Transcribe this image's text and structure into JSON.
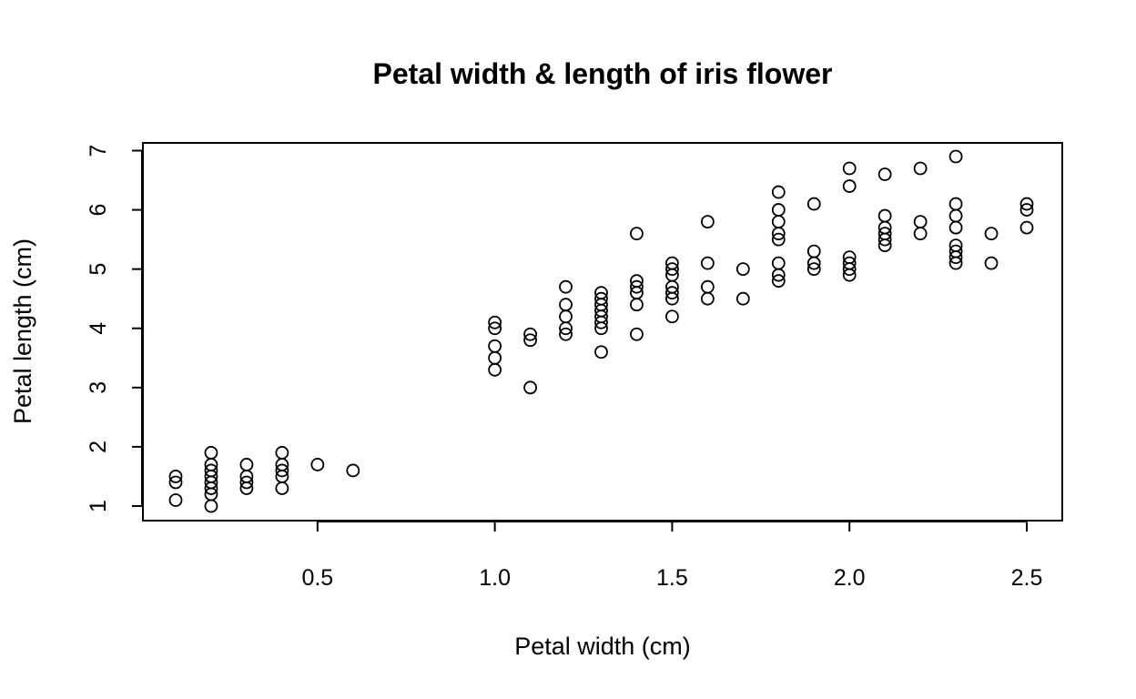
{
  "chart_data": {
    "type": "scatter",
    "title": "Petal width & length of iris flower",
    "xlabel": "Petal width (cm)",
    "ylabel": "Petal length (cm)",
    "xlim": [
      0.1,
      2.5
    ],
    "ylim": [
      1,
      6.9
    ],
    "x_ticks": [
      0.5,
      1.0,
      1.5,
      2.0,
      2.5
    ],
    "x_tick_labels": [
      "0.5",
      "1.0",
      "1.5",
      "2.0",
      "2.5"
    ],
    "y_ticks": [
      1,
      2,
      3,
      4,
      5,
      6,
      7
    ],
    "y_tick_labels": [
      "1",
      "2",
      "3",
      "4",
      "5",
      "6",
      "7"
    ],
    "grid": false,
    "marker": "open-circle",
    "points": [
      [
        0.1,
        1.1
      ],
      [
        0.1,
        1.4
      ],
      [
        0.1,
        1.5
      ],
      [
        0.2,
        1.0
      ],
      [
        0.2,
        1.2
      ],
      [
        0.2,
        1.3
      ],
      [
        0.2,
        1.4
      ],
      [
        0.2,
        1.5
      ],
      [
        0.2,
        1.6
      ],
      [
        0.2,
        1.7
      ],
      [
        0.2,
        1.9
      ],
      [
        0.3,
        1.3
      ],
      [
        0.3,
        1.4
      ],
      [
        0.3,
        1.5
      ],
      [
        0.3,
        1.7
      ],
      [
        0.4,
        1.3
      ],
      [
        0.4,
        1.5
      ],
      [
        0.4,
        1.6
      ],
      [
        0.4,
        1.7
      ],
      [
        0.4,
        1.9
      ],
      [
        0.5,
        1.7
      ],
      [
        0.6,
        1.6
      ],
      [
        1.0,
        3.3
      ],
      [
        1.0,
        3.5
      ],
      [
        1.0,
        3.7
      ],
      [
        1.0,
        4.0
      ],
      [
        1.0,
        4.1
      ],
      [
        1.1,
        3.0
      ],
      [
        1.1,
        3.8
      ],
      [
        1.1,
        3.9
      ],
      [
        1.2,
        3.9
      ],
      [
        1.2,
        4.0
      ],
      [
        1.2,
        4.2
      ],
      [
        1.2,
        4.4
      ],
      [
        1.2,
        4.7
      ],
      [
        1.3,
        3.6
      ],
      [
        1.3,
        4.0
      ],
      [
        1.3,
        4.1
      ],
      [
        1.3,
        4.2
      ],
      [
        1.3,
        4.3
      ],
      [
        1.3,
        4.4
      ],
      [
        1.3,
        4.5
      ],
      [
        1.3,
        4.6
      ],
      [
        1.4,
        3.9
      ],
      [
        1.4,
        4.4
      ],
      [
        1.4,
        4.6
      ],
      [
        1.4,
        4.7
      ],
      [
        1.4,
        4.8
      ],
      [
        1.4,
        5.6
      ],
      [
        1.5,
        4.2
      ],
      [
        1.5,
        4.5
      ],
      [
        1.5,
        4.6
      ],
      [
        1.5,
        4.7
      ],
      [
        1.5,
        4.9
      ],
      [
        1.5,
        5.0
      ],
      [
        1.5,
        5.1
      ],
      [
        1.6,
        4.5
      ],
      [
        1.6,
        4.7
      ],
      [
        1.6,
        5.1
      ],
      [
        1.6,
        5.8
      ],
      [
        1.7,
        4.5
      ],
      [
        1.7,
        5.0
      ],
      [
        1.8,
        4.8
      ],
      [
        1.8,
        4.9
      ],
      [
        1.8,
        5.1
      ],
      [
        1.8,
        5.5
      ],
      [
        1.8,
        5.6
      ],
      [
        1.8,
        5.8
      ],
      [
        1.8,
        6.0
      ],
      [
        1.8,
        6.3
      ],
      [
        1.9,
        5.0
      ],
      [
        1.9,
        5.1
      ],
      [
        1.9,
        5.3
      ],
      [
        1.9,
        6.1
      ],
      [
        2.0,
        4.9
      ],
      [
        2.0,
        5.0
      ],
      [
        2.0,
        5.1
      ],
      [
        2.0,
        5.2
      ],
      [
        2.0,
        6.4
      ],
      [
        2.0,
        6.7
      ],
      [
        2.1,
        5.4
      ],
      [
        2.1,
        5.5
      ],
      [
        2.1,
        5.6
      ],
      [
        2.1,
        5.7
      ],
      [
        2.1,
        5.9
      ],
      [
        2.1,
        6.6
      ],
      [
        2.2,
        5.6
      ],
      [
        2.2,
        5.8
      ],
      [
        2.2,
        6.7
      ],
      [
        2.3,
        5.1
      ],
      [
        2.3,
        5.2
      ],
      [
        2.3,
        5.3
      ],
      [
        2.3,
        5.4
      ],
      [
        2.3,
        5.7
      ],
      [
        2.3,
        5.9
      ],
      [
        2.3,
        6.1
      ],
      [
        2.3,
        6.9
      ],
      [
        2.4,
        5.1
      ],
      [
        2.4,
        5.6
      ],
      [
        2.5,
        5.7
      ],
      [
        2.5,
        6.0
      ],
      [
        2.5,
        6.1
      ]
    ]
  }
}
